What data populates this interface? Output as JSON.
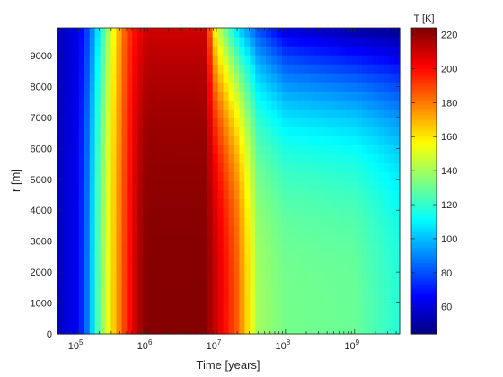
{
  "chart_data": {
    "type": "heatmap",
    "title": "",
    "xlabel": "Time [years]",
    "ylabel": "r [m]",
    "x_scale": "log",
    "x_range_years": [
      50000,
      4500000000
    ],
    "y_range": [
      0,
      9900
    ],
    "x_ticks": [
      {
        "value": 100000,
        "base": "10",
        "exp": "5"
      },
      {
        "value": 1000000,
        "base": "10",
        "exp": "6"
      },
      {
        "value": 10000000,
        "base": "10",
        "exp": "7"
      },
      {
        "value": 100000000,
        "base": "10",
        "exp": "8"
      },
      {
        "value": 1000000000,
        "base": "10",
        "exp": "9"
      }
    ],
    "y_ticks": [
      "0",
      "1000",
      "2000",
      "3000",
      "4000",
      "5000",
      "6000",
      "7000",
      "8000",
      "9000"
    ],
    "y_tick_values": [
      0,
      1000,
      2000,
      3000,
      4000,
      5000,
      6000,
      7000,
      8000,
      9000
    ],
    "colorbar": {
      "label": "T [K]",
      "colormap": "jet",
      "range": [
        44,
        224
      ],
      "ticks": [
        "60",
        "80",
        "100",
        "120",
        "140",
        "160",
        "180",
        "200",
        "220"
      ],
      "tick_values": [
        60,
        80,
        100,
        120,
        140,
        160,
        180,
        200,
        220
      ]
    },
    "temperature_profile_vs_time": {
      "time_years": [
        50000,
        100000,
        140000,
        200000,
        300000,
        500000,
        800000,
        1000000,
        7000000,
        10000000,
        20000000,
        40000000,
        100000000,
        1000000000,
        4500000000
      ],
      "T_center_K": [
        55,
        65,
        90,
        130,
        160,
        195,
        218,
        223,
        223,
        210,
        185,
        140,
        132,
        130,
        118
      ],
      "T_surface_K": [
        55,
        62,
        80,
        110,
        150,
        190,
        205,
        210,
        210,
        150,
        105,
        80,
        60,
        50,
        46
      ]
    }
  }
}
